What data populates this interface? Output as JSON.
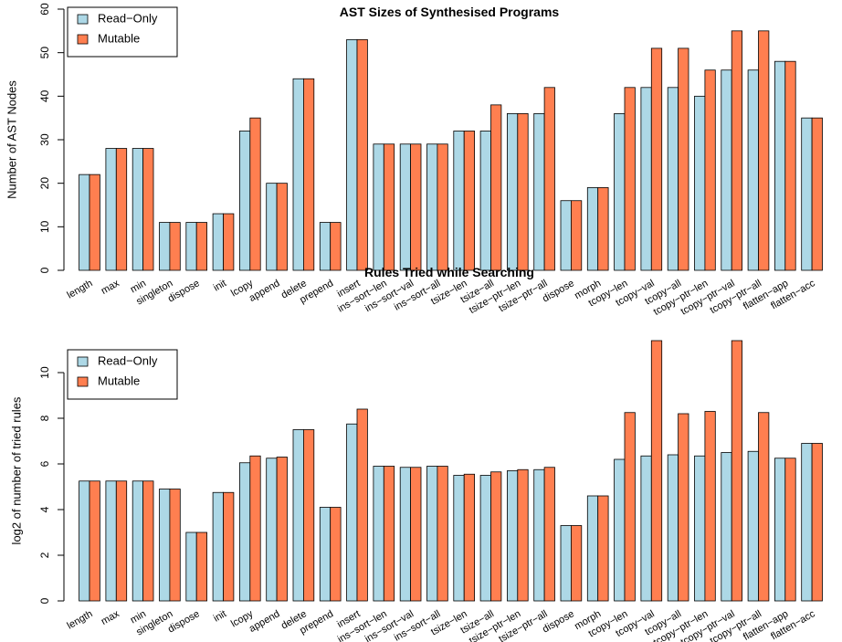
{
  "colors": {
    "readonly": "#add8e6",
    "mutable": "#ff7f50",
    "stroke": "#000000"
  },
  "chart_data": [
    {
      "type": "bar",
      "title": "AST Sizes of Synthesised Programs",
      "xlabel": "",
      "ylabel": "Number of AST Nodes",
      "ylim": [
        0,
        60
      ],
      "yticks": [
        0,
        10,
        20,
        30,
        40,
        50,
        60
      ],
      "legend": "top-left",
      "categories": [
        "length",
        "max",
        "min",
        "singleton",
        "dispose",
        "init",
        "lcopy",
        "append",
        "delete",
        "prepend",
        "insert",
        "ins−sort−len",
        "ins−sort−val",
        "ins−sort−all",
        "tsize−len",
        "tsize−all",
        "tsize−ptr−len",
        "tsize−ptr−all",
        "dispose",
        "morph",
        "tcopy−len",
        "tcopy−val",
        "tcopy−all",
        "tcopy−ptr−len",
        "tcopy−ptr−val",
        "tcopy−ptr−all",
        "flatten−app",
        "flatten−acc"
      ],
      "series": [
        {
          "name": "Read−Only",
          "values": [
            22,
            28,
            28,
            11,
            11,
            13,
            32,
            20,
            44,
            11,
            53,
            29,
            29,
            29,
            32,
            32,
            36,
            36,
            16,
            19,
            36,
            42,
            42,
            40,
            46,
            46,
            48,
            35
          ]
        },
        {
          "name": "Mutable",
          "values": [
            22,
            28,
            28,
            11,
            11,
            13,
            35,
            20,
            44,
            11,
            53,
            29,
            29,
            29,
            32,
            38,
            36,
            42,
            16,
            19,
            42,
            51,
            51,
            46,
            55,
            55,
            48,
            35
          ]
        }
      ]
    },
    {
      "type": "bar",
      "title": "Rules Tried while Searching",
      "xlabel": "",
      "ylabel": "log2 of number of tried rules",
      "ylim": [
        0,
        11.4
      ],
      "yticks": [
        0,
        2,
        4,
        6,
        8,
        10
      ],
      "legend": "top-left",
      "categories": [
        "length",
        "max",
        "min",
        "singleton",
        "dispose",
        "init",
        "lcopy",
        "append",
        "delete",
        "prepend",
        "insert",
        "ins−sort−len",
        "ins−sort−val",
        "ins−sort−all",
        "tsize−len",
        "tsize−all",
        "tsize−ptr−len",
        "tsize−ptr−all",
        "dispose",
        "morph",
        "tcopy−len",
        "tcopy−val",
        "tcopy−all",
        "tcopy−ptr−len",
        "tcopy−ptr−val",
        "tcopy−ptr−all",
        "flatten−app",
        "flatten−acc"
      ],
      "series": [
        {
          "name": "Read−Only",
          "values": [
            5.25,
            5.25,
            5.25,
            4.9,
            3.0,
            4.75,
            6.05,
            6.25,
            7.5,
            4.1,
            7.75,
            5.9,
            5.85,
            5.9,
            5.5,
            5.5,
            5.7,
            5.75,
            3.3,
            4.6,
            6.2,
            6.35,
            6.4,
            6.35,
            6.5,
            6.55,
            6.25,
            6.9
          ]
        },
        {
          "name": "Mutable",
          "values": [
            5.25,
            5.25,
            5.25,
            4.9,
            3.0,
            4.75,
            6.35,
            6.3,
            7.5,
            4.1,
            8.4,
            5.9,
            5.85,
            5.9,
            5.55,
            5.65,
            5.75,
            5.85,
            3.3,
            4.6,
            8.25,
            11.4,
            8.2,
            8.3,
            11.4,
            8.25,
            6.25,
            6.9
          ]
        }
      ]
    }
  ]
}
